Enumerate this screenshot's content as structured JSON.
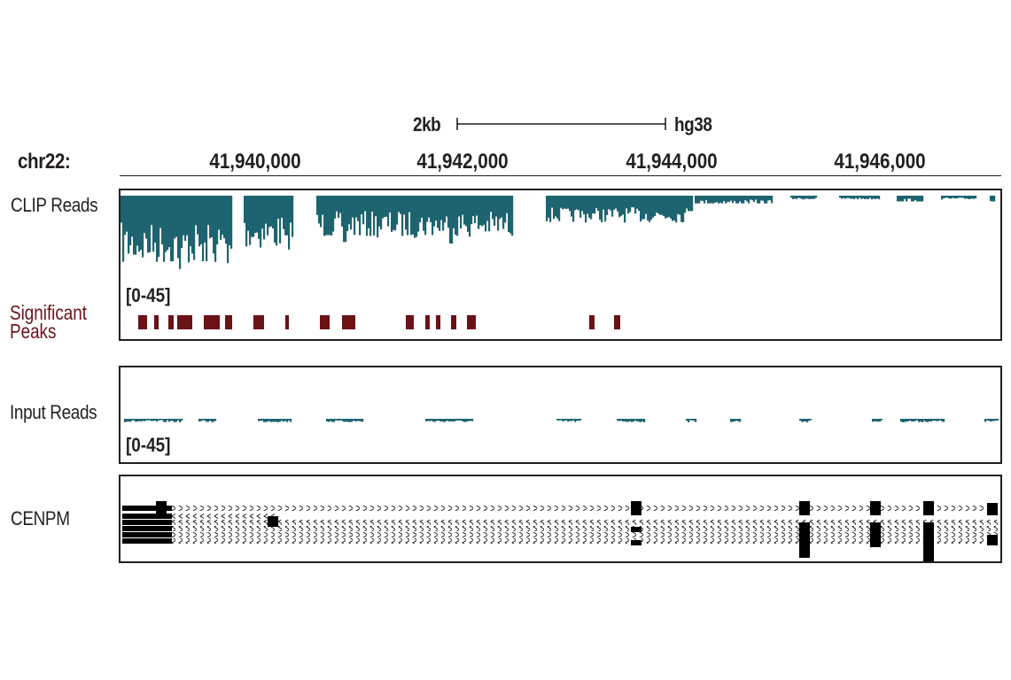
{
  "scale_bar": {
    "size_label": "2kb",
    "assembly_label": "hg38"
  },
  "chromosome": "chr22:",
  "axis_ticks": [
    "41,940,000",
    "41,942,000",
    "41,944,000",
    "41,946,000"
  ],
  "tracks": {
    "clip": {
      "label": "CLIP Reads",
      "range": "[0-45]",
      "color": "#1e6470"
    },
    "peaks": {
      "label_line1": "Significant",
      "label_line2": "Peaks",
      "color": "#6b1217"
    },
    "input": {
      "label": "Input Reads",
      "range": "[0-45]",
      "color": "#1e6470"
    },
    "gene": {
      "label": "CENPM",
      "color": "#000000"
    }
  }
}
